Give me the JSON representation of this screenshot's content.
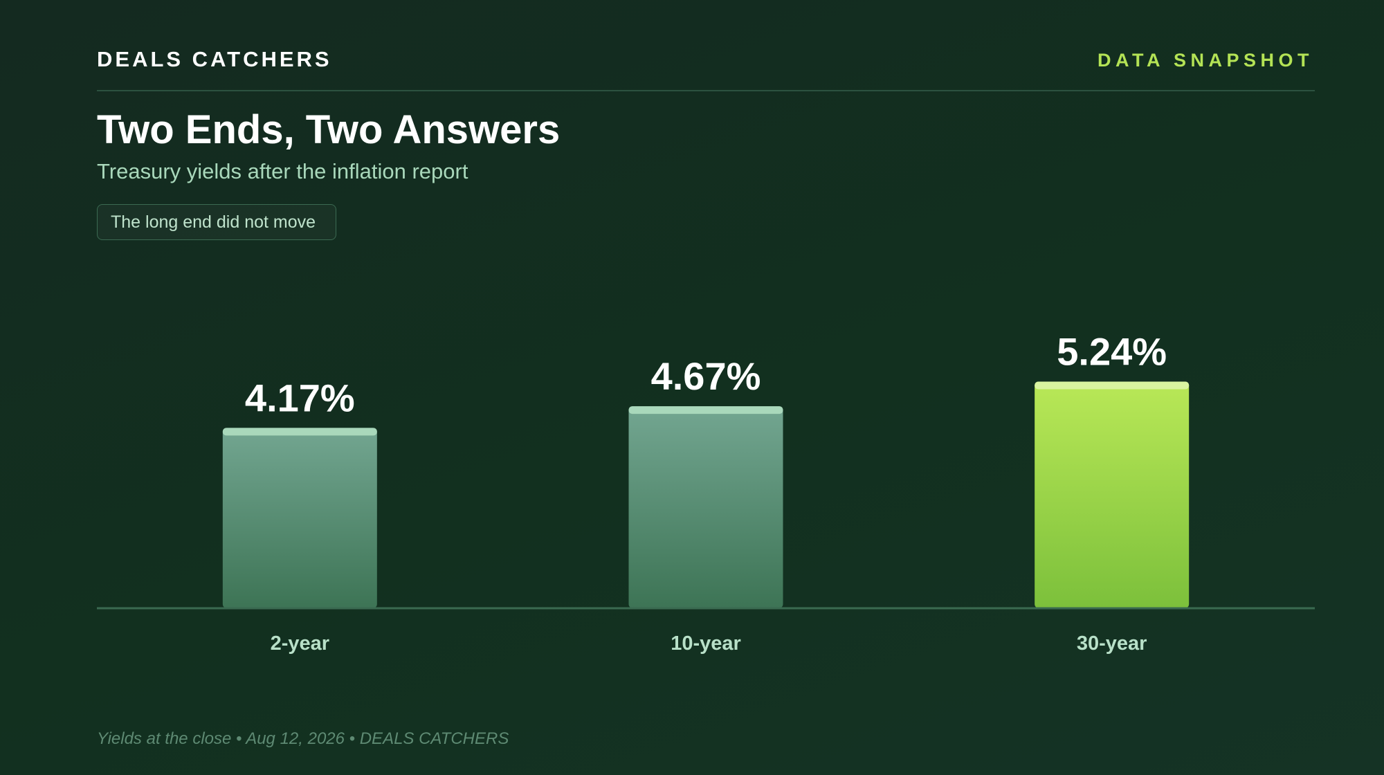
{
  "header": {
    "brand": "DEALS CATCHERS",
    "tag": "DATA SNAPSHOT"
  },
  "title": "Two Ends, Two Answers",
  "subtitle": "Treasury yields after the inflation report",
  "callout": "The long end did not move",
  "footer": "Yields at the close • Aug 12, 2026 • DEALS CATCHERS",
  "colors": {
    "muted_bar_top": "#73a691",
    "muted_bar_bottom": "#3d7455",
    "muted_cap": "#a9d8bb",
    "highlight_bar_top": "#b9e857",
    "highlight_bar_bottom": "#7cc03b",
    "highlight_cap": "#d9f5a0",
    "axis": "#3a6a50",
    "category_label": "#b8e0c8",
    "value_label": "#ffffff"
  },
  "chart_data": {
    "type": "bar",
    "categories": [
      "2-year",
      "10-year",
      "30-year"
    ],
    "values": [
      4.17,
      4.67,
      5.24
    ],
    "value_labels": [
      "4.17%",
      "4.67%",
      "5.24%"
    ],
    "highlight_index": 2,
    "title": "",
    "xlabel": "",
    "ylabel": "",
    "ylim": [
      0,
      9.6
    ],
    "grid": false,
    "legend": "none"
  }
}
